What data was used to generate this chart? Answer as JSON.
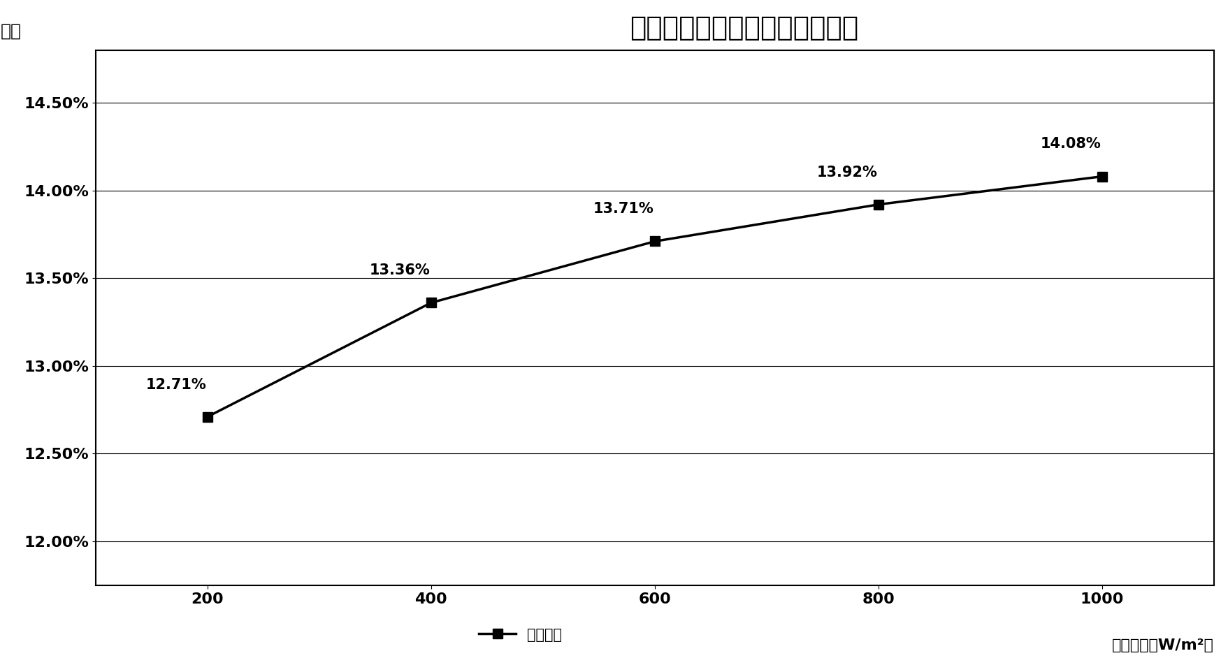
{
  "title": "不同光照强度下组件的效率曲线",
  "ylabel": "效率",
  "xlabel_label": "光照强度（W/m²）",
  "legend_label": "组件效率",
  "x_values": [
    200,
    400,
    600,
    800,
    1000
  ],
  "y_values": [
    0.1271,
    0.1336,
    0.1371,
    0.1392,
    0.1408
  ],
  "y_labels": [
    "12.71%",
    "13.36%",
    "13.71%",
    "13.92%",
    "14.08%"
  ],
  "yticks": [
    0.12,
    0.125,
    0.13,
    0.135,
    0.14,
    0.145
  ],
  "ytick_labels": [
    "12.00%",
    "12.50%",
    "13.00%",
    "13.50%",
    "14.00%",
    "14.50%"
  ],
  "ylim": [
    0.1175,
    0.148
  ],
  "xlim": [
    100,
    1100
  ],
  "line_color": "#000000",
  "marker": "s",
  "marker_size": 10,
  "line_width": 2.5,
  "background_color": "#ffffff",
  "border_color": "#000000",
  "title_fontsize": 28,
  "ylabel_fontsize": 18,
  "xlabel_fontsize": 16,
  "tick_fontsize": 16,
  "annotation_fontsize": 15,
  "legend_fontsize": 15
}
